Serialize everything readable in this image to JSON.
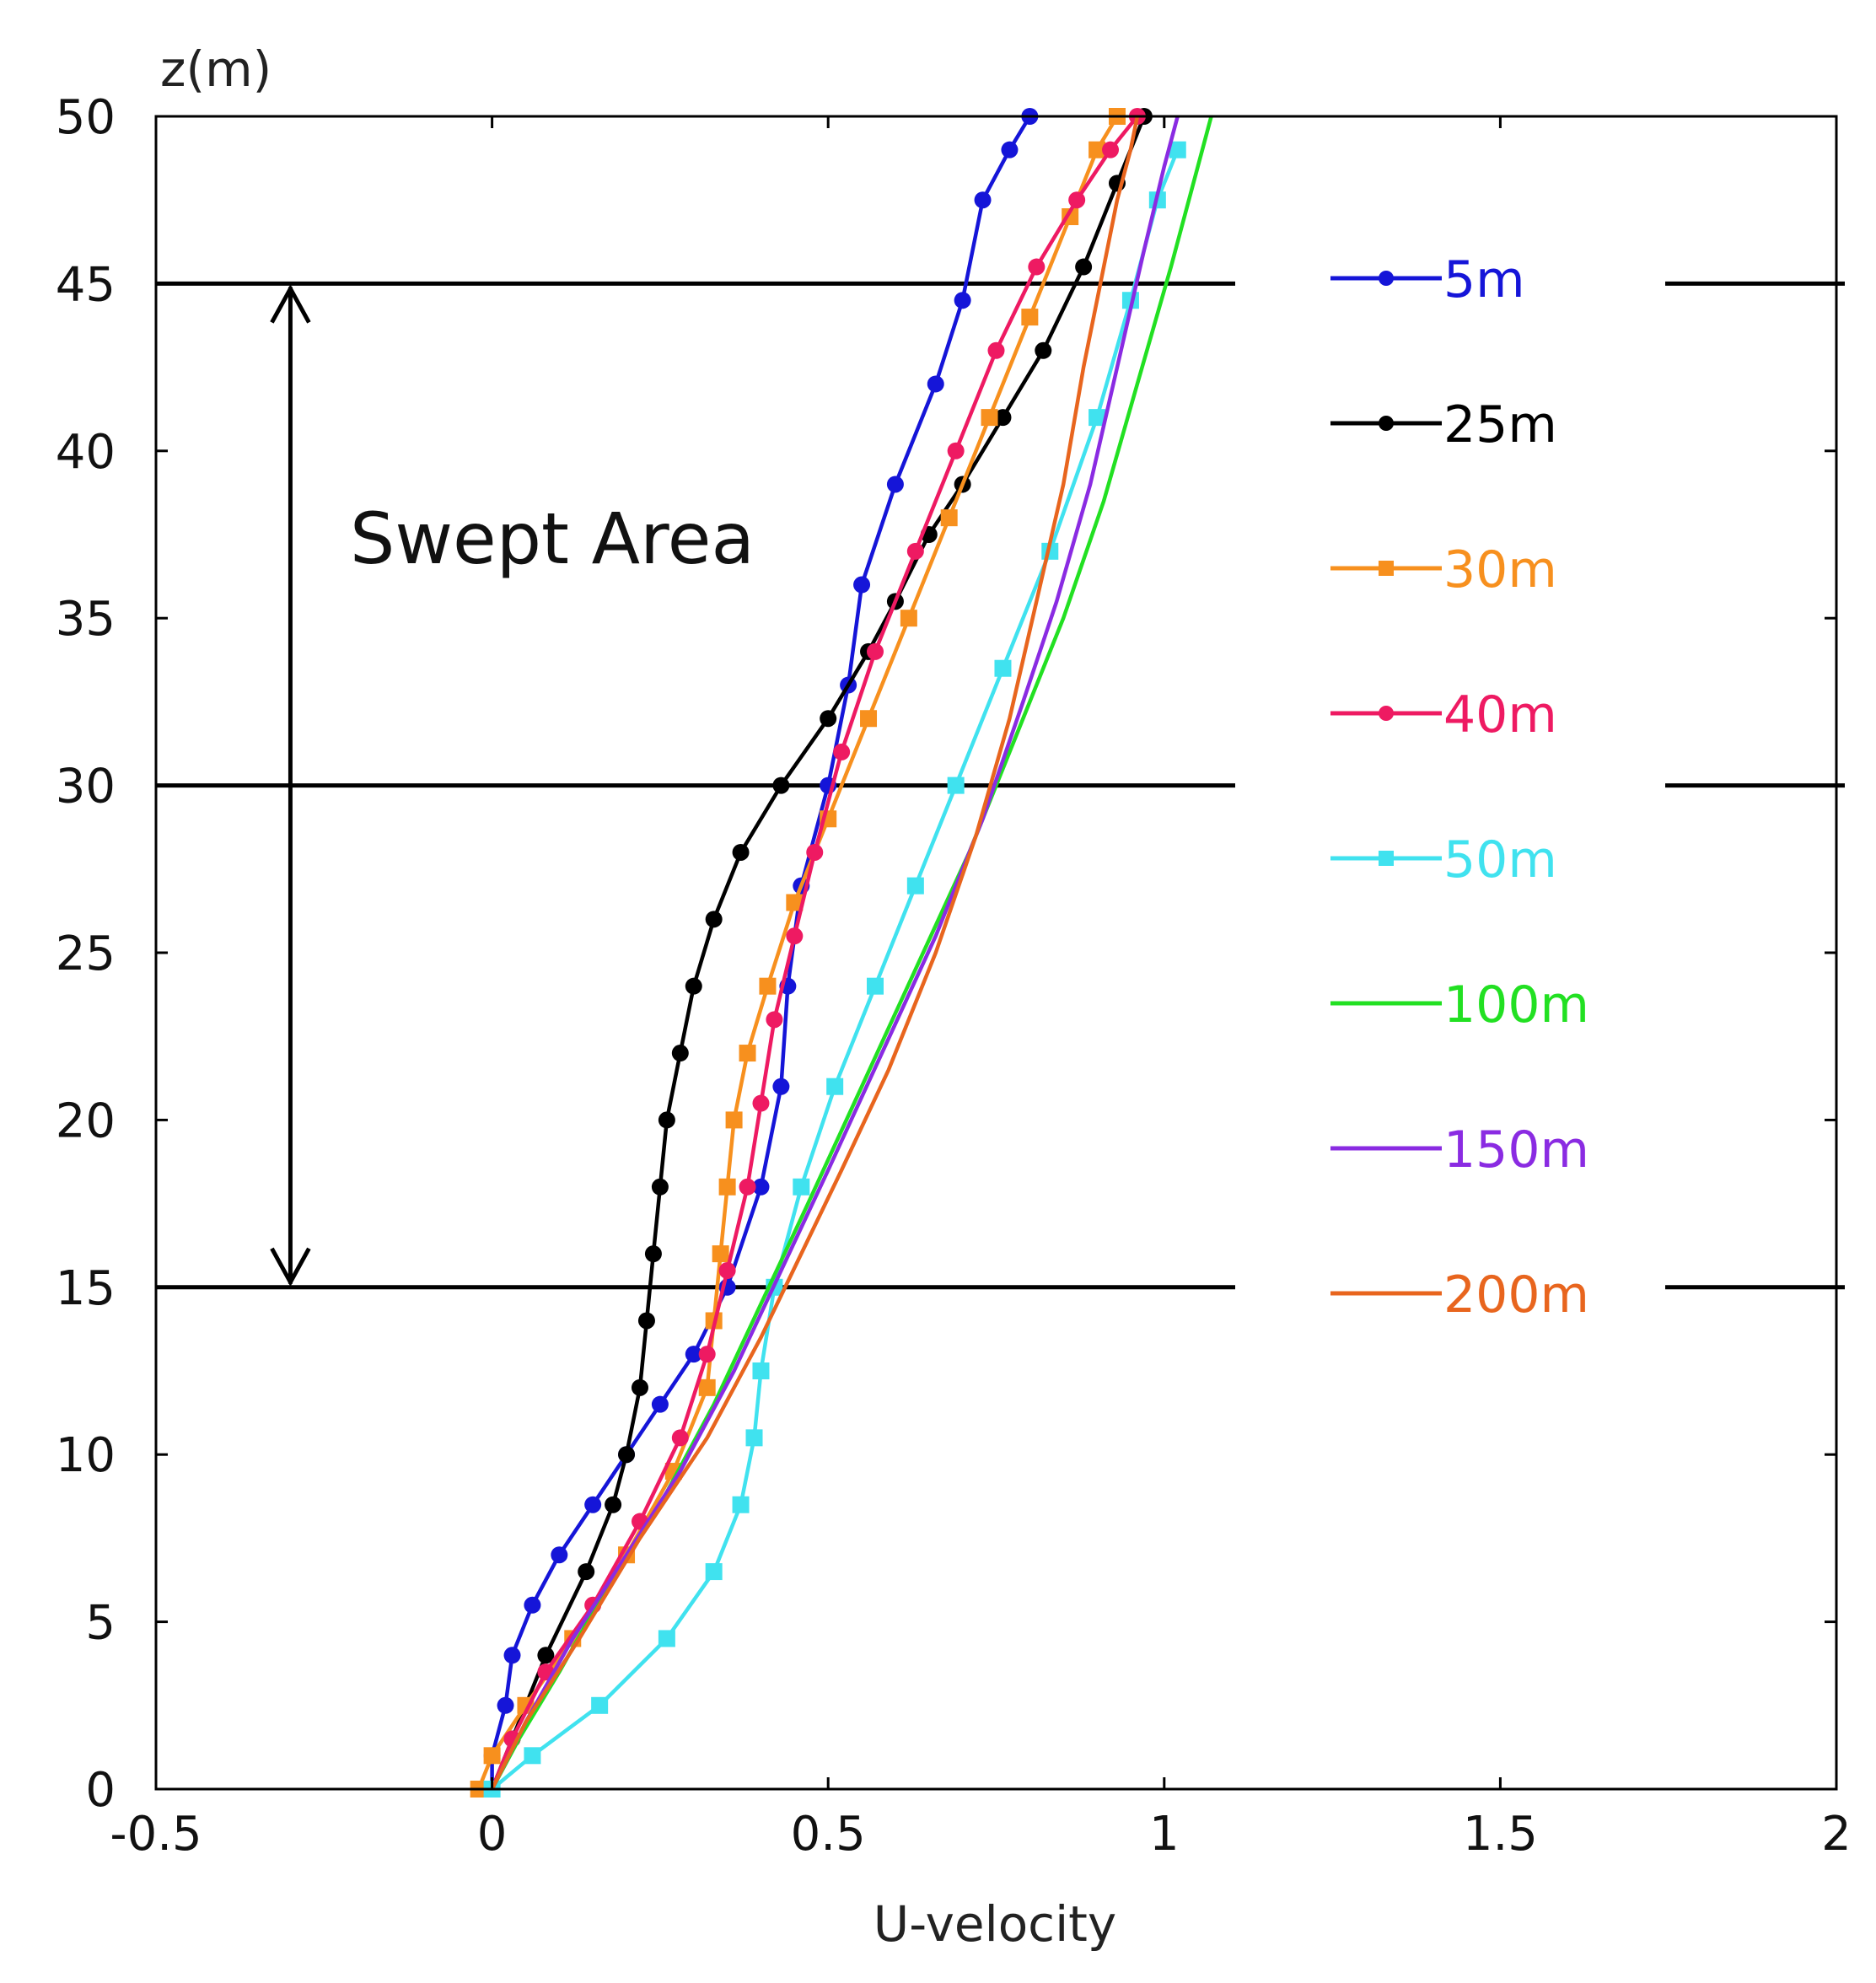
{
  "chart_data": {
    "type": "line",
    "title": "",
    "xlabel": "U-velocity",
    "ylabel": "z(m)",
    "xlim": [
      -0.5,
      2
    ],
    "ylim": [
      0,
      50
    ],
    "x_ticks": [
      "-0.5",
      "0",
      "0.5",
      "1",
      "1.5",
      "2"
    ],
    "y_ticks": [
      "0",
      "5",
      "10",
      "15",
      "20",
      "25",
      "30",
      "35",
      "40",
      "45",
      "50"
    ],
    "x_tick_values": [
      -0.5,
      0,
      0.5,
      1,
      1.5,
      2
    ],
    "y_tick_values": [
      0,
      5,
      10,
      15,
      20,
      25,
      30,
      35,
      40,
      45,
      50
    ],
    "grid": false,
    "legend_position": "right",
    "reference_lines": [
      {
        "z": 15,
        "label": ""
      },
      {
        "z": 30,
        "label": ""
      },
      {
        "z": 45,
        "label": ""
      }
    ],
    "annotation": {
      "text": "Swept Area",
      "x": -0.3,
      "z_from": 15,
      "z_to": 45
    },
    "series": [
      {
        "name": "5m",
        "color": "#1515d8",
        "marker": "circle",
        "x": [
          0.0,
          0.0,
          0.02,
          0.03,
          0.06,
          0.1,
          0.15,
          0.2,
          0.25,
          0.3,
          0.35,
          0.4,
          0.43,
          0.44,
          0.46,
          0.5,
          0.53,
          0.55,
          0.6,
          0.66,
          0.7,
          0.73,
          0.77,
          0.8
        ],
        "z": [
          0,
          1,
          2.5,
          4,
          5.5,
          7,
          8.5,
          10,
          11.5,
          13,
          15,
          18,
          21,
          24,
          27,
          30,
          33,
          36,
          39,
          42,
          44.5,
          47.5,
          49,
          50
        ]
      },
      {
        "name": "25m",
        "color": "#000000",
        "marker": "circle",
        "x": [
          0.0,
          0.03,
          0.08,
          0.14,
          0.18,
          0.2,
          0.22,
          0.23,
          0.24,
          0.25,
          0.26,
          0.28,
          0.3,
          0.33,
          0.37,
          0.43,
          0.5,
          0.56,
          0.6,
          0.65,
          0.7,
          0.76,
          0.82,
          0.88,
          0.93,
          0.97
        ],
        "z": [
          0,
          1.5,
          4,
          6.5,
          8.5,
          10,
          12,
          14,
          16,
          18,
          20,
          22,
          24,
          26,
          28,
          30,
          32,
          34,
          35.5,
          37.5,
          39,
          41,
          43,
          45.5,
          48,
          50
        ]
      },
      {
        "name": "30m",
        "color": "#f7901e",
        "marker": "square",
        "x": [
          -0.02,
          0.0,
          0.05,
          0.12,
          0.2,
          0.27,
          0.32,
          0.33,
          0.34,
          0.35,
          0.36,
          0.38,
          0.41,
          0.45,
          0.5,
          0.56,
          0.62,
          0.68,
          0.74,
          0.8,
          0.86,
          0.9,
          0.93
        ],
        "z": [
          0,
          1,
          2.5,
          4.5,
          7,
          9.5,
          12,
          14,
          16,
          18,
          20,
          22,
          24,
          26.5,
          29,
          32,
          35,
          38,
          41,
          44,
          47,
          49,
          50
        ]
      },
      {
        "name": "40m",
        "color": "#ee1a62",
        "marker": "circle",
        "x": [
          0.0,
          0.03,
          0.08,
          0.15,
          0.22,
          0.28,
          0.32,
          0.35,
          0.38,
          0.4,
          0.42,
          0.45,
          0.48,
          0.52,
          0.57,
          0.63,
          0.69,
          0.75,
          0.81,
          0.87,
          0.92,
          0.96
        ],
        "z": [
          0,
          1.5,
          3.5,
          5.5,
          8,
          10.5,
          13,
          15.5,
          18,
          20.5,
          23,
          25.5,
          28,
          31,
          34,
          37,
          40,
          43,
          45.5,
          47.5,
          49,
          50
        ]
      },
      {
        "name": "50m",
        "color": "#40e2ef",
        "marker": "square",
        "x": [
          0.0,
          0.06,
          0.16,
          0.26,
          0.33,
          0.37,
          0.39,
          0.4,
          0.42,
          0.46,
          0.51,
          0.57,
          0.63,
          0.69,
          0.76,
          0.83,
          0.9,
          0.95,
          0.99,
          1.02
        ],
        "z": [
          0,
          1,
          2.5,
          4.5,
          6.5,
          8.5,
          10.5,
          12.5,
          15,
          18,
          21,
          24,
          27,
          30,
          33.5,
          37,
          41,
          44.5,
          47.5,
          49
        ]
      },
      {
        "name": "100m",
        "color": "#22e022",
        "marker": "none",
        "x": [
          0.0,
          0.04,
          0.1,
          0.17,
          0.25,
          0.33,
          0.4,
          0.47,
          0.55,
          0.63,
          0.71,
          0.78,
          0.85,
          0.91,
          0.96,
          1.01,
          1.05,
          1.07
        ],
        "z": [
          0,
          1.5,
          3.5,
          6,
          8.5,
          11.5,
          14.5,
          17.5,
          21,
          24.5,
          28,
          31.5,
          35,
          38.5,
          42,
          45.5,
          48.5,
          50
        ]
      },
      {
        "name": "150m",
        "color": "#8a2be2",
        "marker": "none",
        "x": [
          0.0,
          0.05,
          0.12,
          0.2,
          0.28,
          0.36,
          0.43,
          0.5,
          0.58,
          0.66,
          0.73,
          0.79,
          0.84,
          0.89,
          0.93,
          0.97,
          1.0,
          1.02
        ],
        "z": [
          0,
          2,
          4.5,
          7,
          9.5,
          12.5,
          15.5,
          18.5,
          22,
          25.5,
          29,
          32.5,
          35.5,
          39,
          42.5,
          46,
          48.5,
          50
        ]
      },
      {
        "name": "200m",
        "color": "#e8651e",
        "marker": "none",
        "x": [
          0.0,
          0.05,
          0.13,
          0.22,
          0.32,
          0.4,
          0.46,
          0.52,
          0.59,
          0.66,
          0.72,
          0.77,
          0.81,
          0.85,
          0.88,
          0.91,
          0.93,
          0.95,
          0.96
        ],
        "z": [
          0,
          2,
          4.5,
          7.5,
          10.5,
          13.5,
          16,
          18.5,
          21.5,
          25,
          28.5,
          32,
          35.5,
          39,
          42.5,
          45.5,
          47.5,
          49,
          50
        ]
      }
    ]
  }
}
